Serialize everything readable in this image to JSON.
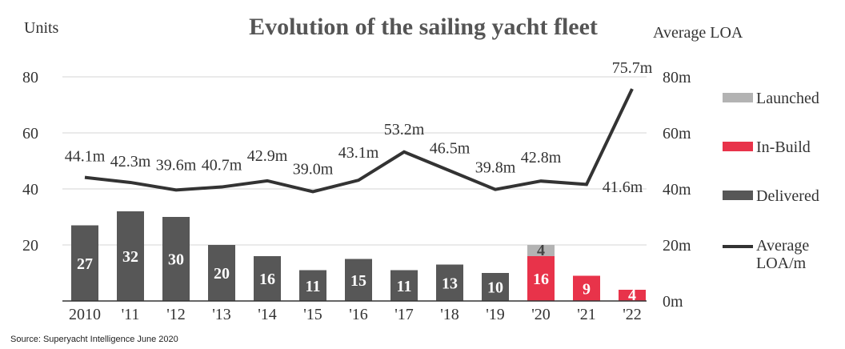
{
  "chart_data": {
    "type": "bar",
    "title": "Evolution of the sailing yacht fleet",
    "y_left_label": "Units",
    "y_right_label": "Average LOA",
    "y_left_ticks": [
      "80",
      "60",
      "40",
      "20"
    ],
    "y_right_ticks": [
      "80m",
      "60m",
      "40m",
      "20m",
      "0m"
    ],
    "ylim_left": [
      0,
      80
    ],
    "ylim_right": [
      0,
      80
    ],
    "categories": [
      "2010",
      "'11",
      "'12",
      "'13",
      "'14",
      "'15",
      "'16",
      "'17",
      "'18",
      "'19",
      "'20",
      "'21",
      "'22"
    ],
    "series": [
      {
        "name": "Launched",
        "color": "#b3b3b3",
        "values": [
          0,
          0,
          0,
          0,
          0,
          0,
          0,
          0,
          0,
          0,
          4,
          0,
          0
        ],
        "labels": [
          "",
          "",
          "",
          "",
          "",
          "",
          "",
          "",
          "",
          "",
          "4",
          "",
          ""
        ]
      },
      {
        "name": "In-Build",
        "color": "#e8334a",
        "values": [
          0,
          0,
          0,
          0,
          0,
          0,
          0,
          0,
          0,
          0,
          16,
          9,
          4
        ],
        "labels": [
          "",
          "",
          "",
          "",
          "",
          "",
          "",
          "",
          "",
          "",
          "16",
          "9",
          "4"
        ]
      },
      {
        "name": "Delivered",
        "color": "#575757",
        "values": [
          27,
          32,
          30,
          20,
          16,
          11,
          15,
          11,
          13,
          10,
          0,
          0,
          0
        ],
        "labels": [
          "27",
          "32",
          "30",
          "20",
          "16",
          "11",
          "15",
          "11",
          "13",
          "10",
          "",
          "",
          ""
        ]
      }
    ],
    "line_series": {
      "name": "Average LOA/m",
      "name_lines": [
        "Average",
        "LOA/m"
      ],
      "color": "#333333",
      "axis": "right",
      "values": [
        44.1,
        42.3,
        39.6,
        40.7,
        42.9,
        39.0,
        43.1,
        53.2,
        46.5,
        39.8,
        42.8,
        41.6,
        75.7
      ],
      "labels": [
        "44.1m",
        "42.3m",
        "39.6m",
        "40.7m",
        "42.9m",
        "39.0m",
        "43.1m",
        "53.2m",
        "46.5m",
        "39.8m",
        "42.8m",
        "41.6m",
        "75.7m"
      ]
    },
    "legend_position": "right",
    "grid": true
  },
  "source": "Source: Superyacht Intelligence June 2020"
}
